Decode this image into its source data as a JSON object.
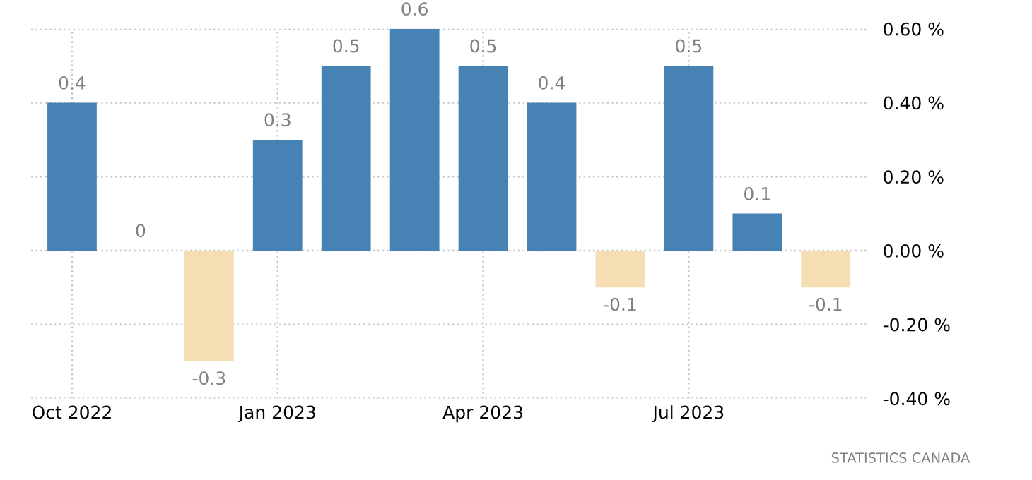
{
  "chart_data": {
    "type": "bar",
    "categories": [
      "Oct 2022",
      null,
      null,
      "Jan 2023",
      null,
      null,
      "Apr 2023",
      null,
      null,
      "Jul 2023",
      null,
      null
    ],
    "values": [
      0.4,
      0,
      -0.3,
      0.3,
      0.5,
      0.6,
      0.5,
      0.4,
      -0.1,
      0.5,
      0.1,
      -0.1
    ],
    "colors": [
      "#4682b4",
      "#4682b4",
      "#f5deb3",
      "#4682b4",
      "#4682b4",
      "#4682b4",
      "#4682b4",
      "#4682b4",
      "#f5deb3",
      "#4682b4",
      "#4682b4",
      "#f5deb3"
    ],
    "ylim": [
      -0.4,
      0.6
    ],
    "yticks": [
      {
        "value": -0.4,
        "label": "-0.40 %"
      },
      {
        "value": -0.2,
        "label": "-0.20 %"
      },
      {
        "value": 0,
        "label": "0.00 %"
      },
      {
        "value": 0.2,
        "label": "0.20 %"
      },
      {
        "value": 0.4,
        "label": "0.40 %"
      },
      {
        "value": 0.6,
        "label": "0.60 %"
      }
    ],
    "data_labels": true,
    "grid": true,
    "annotations": [
      "STATISTICS CANADA"
    ]
  }
}
